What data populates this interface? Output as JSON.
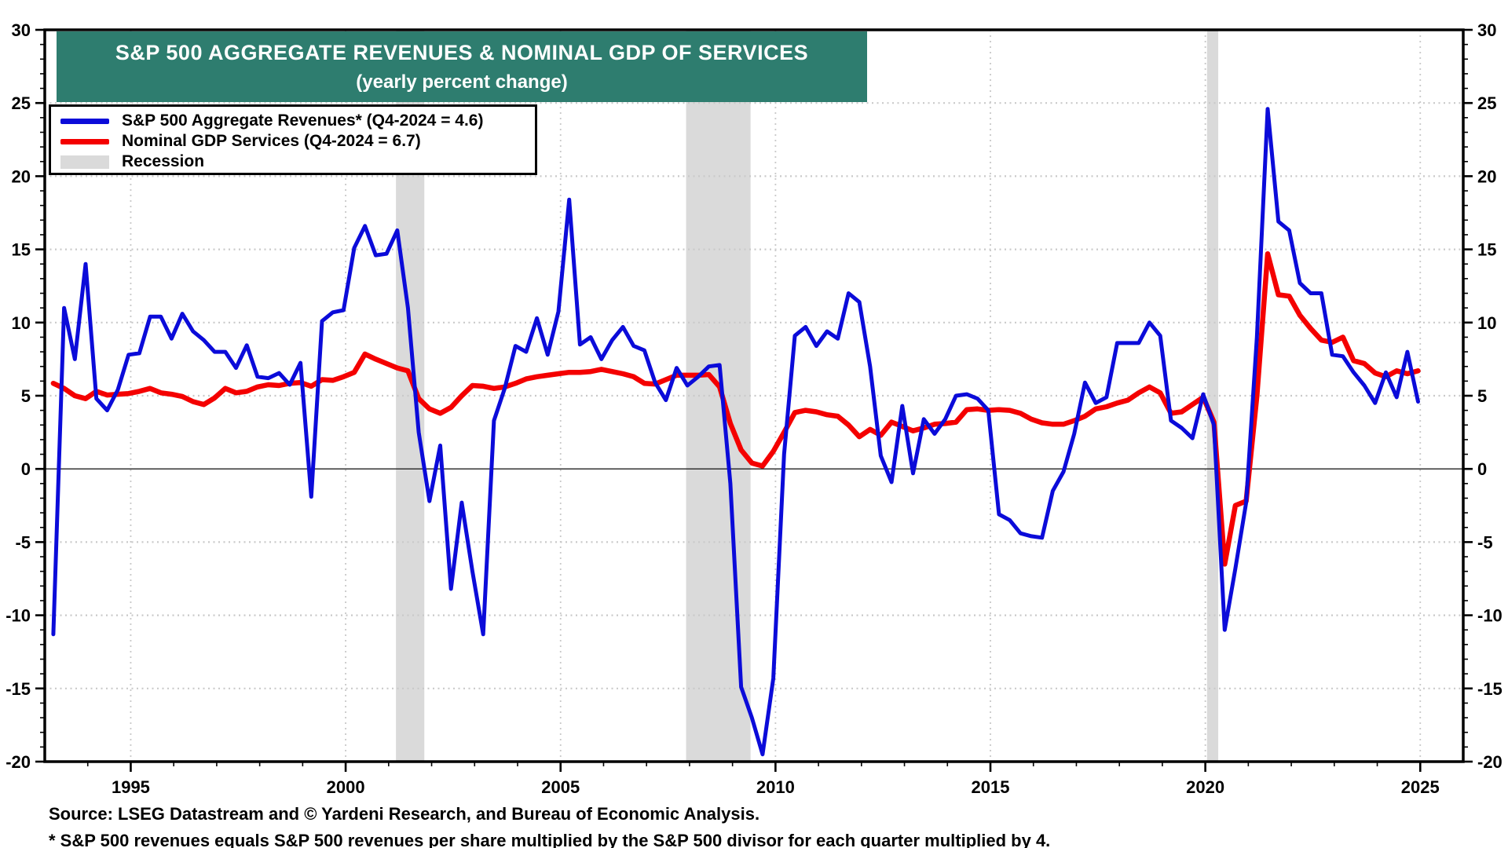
{
  "footer": {
    "source": "Source: LSEG Datastream and © Yardeni Research, and Bureau of Economic Analysis.",
    "footnote": "* S&P 500 revenues equals S&P 500 revenues per share multiplied by the S&P 500 divisor for each quarter multiplied by 4."
  },
  "colors": {
    "title_bg": "#2e7d6f",
    "title_text": "#ffffff",
    "revenues_blue": "#0b0bd9",
    "gdp_red": "#f40000",
    "recession_gray": "#dadada",
    "gridline_gray": "#c9c9c9",
    "axis_black": "#000000"
  },
  "chart_data": {
    "type": "line",
    "title": "S&P 500 AGGREGATE REVENUES & NOMINAL GDP OF SERVICES",
    "subtitle": "(yearly percent change)",
    "recession_label": "Recession",
    "grid": true,
    "legend_position": "top-left",
    "x": {
      "start_year": 1993,
      "frequency": "quarterly",
      "axis_range": [
        1993,
        2026
      ],
      "major_ticks": [
        1995,
        2000,
        2005,
        2010,
        2015,
        2020,
        2025
      ],
      "minor_step_years": 1
    },
    "y": {
      "range": [
        -20,
        30
      ],
      "major_step": 5,
      "minor_step": 1,
      "gridline_values": [
        -15,
        -10,
        -5,
        5,
        10,
        15,
        20,
        25
      ],
      "zero_line": 0
    },
    "recession_bands": [
      [
        2001.17,
        2001.83
      ],
      [
        2007.92,
        2009.42
      ],
      [
        2020.04,
        2020.3
      ]
    ],
    "series": [
      {
        "name": "S&P 500 Aggregate Revenues* (Q4-2024 = 4.6)",
        "color": "#0b0bd9",
        "line_width": 5,
        "last_point": {
          "label": "Q4-2024",
          "value": 4.6
        },
        "values": [
          -11.3,
          11,
          7.5,
          14,
          4.8,
          4,
          5.4,
          7.8,
          7.9,
          10.4,
          10.4,
          8.9,
          10.6,
          9.4,
          8.8,
          8,
          8,
          6.9,
          8.45,
          6.3,
          6.2,
          6.55,
          5.75,
          7.25,
          -1.9,
          10.1,
          10.7,
          10.85,
          15.1,
          16.6,
          14.6,
          14.7,
          16.3,
          11,
          2.5,
          -2.2,
          1.6,
          -8.2,
          -2.3,
          -7,
          -11.3,
          3.3,
          5.5,
          8.4,
          8,
          10.3,
          7.8,
          10.75,
          18.4,
          8.5,
          9,
          7.5,
          8.8,
          9.7,
          8.4,
          8.1,
          5.9,
          4.7,
          6.9,
          5.7,
          6.3,
          7,
          7.1,
          -1,
          -14.9,
          -17,
          -19.5,
          -14.3,
          1,
          9.1,
          9.7,
          8.4,
          9.4,
          8.9,
          12,
          11.4,
          7,
          0.9,
          -0.9,
          4.3,
          -0.3,
          3.4,
          2.4,
          3.4,
          5,
          5.1,
          4.8,
          4,
          -3.1,
          -3.5,
          -4.4,
          -4.6,
          -4.7,
          -1.5,
          -0.2,
          2.4,
          5.9,
          4.5,
          4.9,
          8.6,
          8.6,
          8.6,
          10,
          9.1,
          3.3,
          2.8,
          2.1,
          5.1,
          3,
          -11,
          -6.8,
          -2.3,
          9,
          24.6,
          16.9,
          16.3,
          12.7,
          12,
          12,
          7.8,
          7.7,
          6.6,
          5.7,
          4.5,
          6.6,
          4.9,
          8,
          4.6
        ]
      },
      {
        "name": "Nominal GDP Services (Q4-2024 = 6.7)",
        "color": "#f40000",
        "line_width": 6.5,
        "last_point": {
          "label": "Q4-2024",
          "value": 6.7
        },
        "values": [
          5.85,
          5.5,
          5,
          4.8,
          5.3,
          5.05,
          5.1,
          5.15,
          5.3,
          5.5,
          5.2,
          5.1,
          4.95,
          4.6,
          4.4,
          4.85,
          5.5,
          5.2,
          5.3,
          5.6,
          5.75,
          5.7,
          5.85,
          5.9,
          5.65,
          6.1,
          6.05,
          6.3,
          6.6,
          7.85,
          7.5,
          7.2,
          6.9,
          6.7,
          4.8,
          4.1,
          3.8,
          4.2,
          5,
          5.7,
          5.65,
          5.5,
          5.6,
          5.85,
          6.15,
          6.3,
          6.4,
          6.5,
          6.6,
          6.6,
          6.65,
          6.8,
          6.65,
          6.5,
          6.3,
          5.85,
          5.8,
          6.1,
          6.4,
          6.4,
          6.4,
          6.45,
          5.6,
          3.1,
          1.3,
          0.4,
          0.2,
          1.2,
          2.5,
          3.85,
          4,
          3.9,
          3.7,
          3.6,
          3,
          2.2,
          2.7,
          2.3,
          3.2,
          2.9,
          2.6,
          2.8,
          3.05,
          3.1,
          3.2,
          4.05,
          4.1,
          4,
          4.05,
          4,
          3.8,
          3.4,
          3.15,
          3.05,
          3.05,
          3.3,
          3.6,
          4.1,
          4.25,
          4.5,
          4.7,
          5.2,
          5.6,
          5.2,
          3.8,
          3.9,
          4.4,
          4.9,
          3.2,
          -6.5,
          -2.5,
          -2.2,
          5,
          14.7,
          11.9,
          11.8,
          10.5,
          9.6,
          8.8,
          8.65,
          9,
          7.4,
          7.2,
          6.55,
          6.3,
          6.7,
          6.5,
          6.7
        ]
      }
    ]
  }
}
